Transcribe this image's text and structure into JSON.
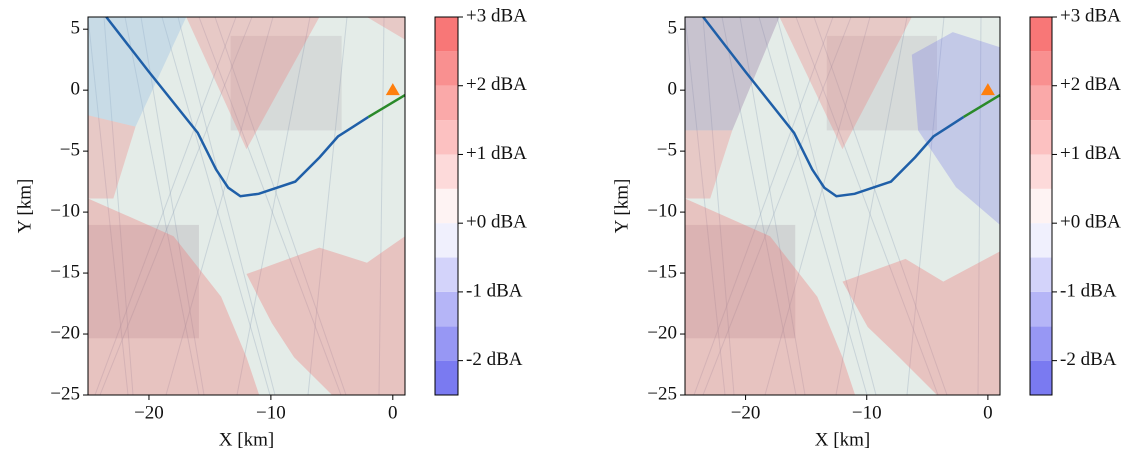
{
  "chart_data": [
    {
      "type": "line",
      "xlabel": "X [km]",
      "ylabel": "Y [km]",
      "xlim": [
        -25,
        1
      ],
      "ylim": [
        -25,
        6
      ],
      "xticks": [
        {
          "value": -20,
          "label": "−20"
        },
        {
          "value": -10,
          "label": "−10"
        },
        0
      ],
      "yticks": [
        5,
        0,
        {
          "value": -5,
          "label": "−5"
        },
        {
          "value": -10,
          "label": "−10"
        },
        {
          "value": -15,
          "label": "−15"
        },
        {
          "value": -20,
          "label": "−20"
        },
        {
          "value": -25,
          "label": "−25"
        }
      ],
      "series": [
        {
          "color": "#1f5fa8",
          "x": [
            -23.5,
            -20,
            -16,
            -14.5,
            -13.5,
            -12.5,
            -11,
            -8,
            -6,
            -4.5,
            -2
          ],
          "values": [
            6,
            1.5,
            -3.5,
            -6.5,
            -8,
            -8.7,
            -8.5,
            -7.5,
            -5.5,
            -3.8,
            -2.2
          ]
        },
        {
          "color": "#2a8a2a",
          "x": [
            -2,
            1
          ],
          "values": [
            -2.2,
            -0.4
          ]
        },
        {
          "color": "#ff7f0e",
          "marker": "triangle",
          "x": [
            0
          ],
          "values": [
            0
          ]
        }
      ],
      "colorbar": {
        "lim": [
          -2.5,
          3
        ],
        "levels": [
          -2.5,
          -2,
          -1.5,
          -1,
          -0.5,
          0,
          0.5,
          1,
          1.5,
          2,
          2.5,
          3
        ],
        "cmap": [
          "#6b6bef",
          "#ffffff",
          "#f76b6b"
        ],
        "ticks": [
          {
            "value": 3,
            "label": "+3 dBA"
          },
          {
            "value": 2,
            "label": "+2 dBA"
          },
          {
            "value": 1,
            "label": "+1 dBA"
          },
          {
            "value": 0,
            "label": "+0 dBA"
          },
          {
            "value": -1,
            "label": "-1 dBA"
          },
          {
            "value": -2,
            "label": "-2 dBA"
          }
        ]
      }
    },
    {
      "type": "line",
      "xlabel": "X [km]",
      "ylabel": "Y [km]",
      "xlim": [
        -25,
        1
      ],
      "ylim": [
        -25,
        6
      ],
      "xticks": [
        {
          "value": -20,
          "label": "−20"
        },
        {
          "value": -10,
          "label": "−10"
        },
        0
      ],
      "yticks": [
        5,
        0,
        {
          "value": -5,
          "label": "−5"
        },
        {
          "value": -10,
          "label": "−10"
        },
        {
          "value": -15,
          "label": "−15"
        },
        {
          "value": -20,
          "label": "−20"
        },
        {
          "value": -25,
          "label": "−25"
        }
      ],
      "series": [
        {
          "color": "#1f5fa8",
          "x": [
            -23.5,
            -20,
            -16,
            -14.5,
            -13.5,
            -12.5,
            -11,
            -8,
            -6,
            -4.5,
            -2
          ],
          "values": [
            6,
            1.5,
            -3.5,
            -6.5,
            -8,
            -8.7,
            -8.5,
            -7.5,
            -5.5,
            -3.8,
            -2.2
          ]
        },
        {
          "color": "#2a8a2a",
          "x": [
            -2,
            1
          ],
          "values": [
            -2.2,
            -0.4
          ]
        },
        {
          "color": "#ff7f0e",
          "marker": "triangle",
          "x": [
            0
          ],
          "values": [
            0
          ]
        }
      ],
      "colorbar": {
        "lim": [
          -2.5,
          3
        ],
        "levels": [
          -2.5,
          -2,
          -1.5,
          -1,
          -0.5,
          0,
          0.5,
          1,
          1.5,
          2,
          2.5,
          3
        ],
        "cmap": [
          "#6b6bef",
          "#ffffff",
          "#f76b6b"
        ],
        "ticks": [
          {
            "value": 3,
            "label": "+3 dBA"
          },
          {
            "value": 2,
            "label": "+2 dBA"
          },
          {
            "value": 1,
            "label": "+1 dBA"
          },
          {
            "value": 0,
            "label": "+0 dBA"
          },
          {
            "value": -1,
            "label": "-1 dBA"
          },
          {
            "value": -2,
            "label": "-2 dBA"
          }
        ]
      }
    }
  ]
}
